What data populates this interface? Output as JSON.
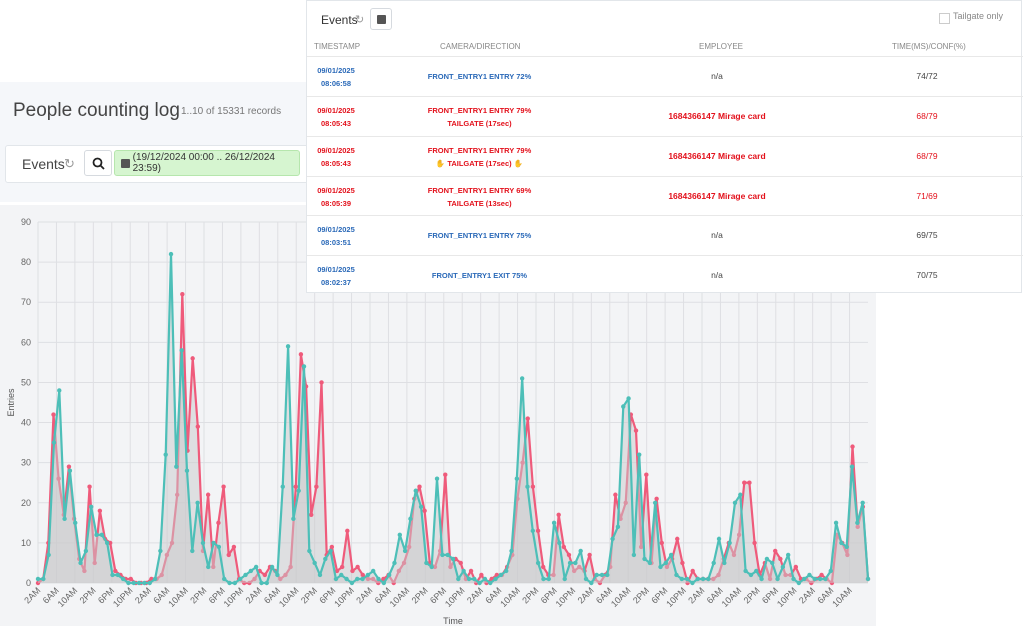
{
  "page": {
    "title": "People counting log",
    "record_count": "1..10 of 15331 records"
  },
  "toolbar": {
    "events_label": "Events",
    "date_range": "(19/12/2024 00:00 .. 26/12/2024 23:59)"
  },
  "events_panel": {
    "title": "Events",
    "tailgate_only_label": "Tailgate only",
    "columns": [
      "TIMESTAMP",
      "CAMERA/DIRECTION",
      "EMPLOYEE",
      "TIME(MS)/CONF(%)"
    ],
    "rows": [
      {
        "date": "09/01/2025",
        "time": "08:06:58",
        "camera": "FRONT_ENTRY1 ENTRY 72%",
        "tailgate": "",
        "employee": "n/a",
        "metric": "74/72",
        "alert": false
      },
      {
        "date": "09/01/2025",
        "time": "08:05:43",
        "camera": "FRONT_ENTRY1 ENTRY 79%",
        "tailgate": "TAILGATE (17sec)",
        "employee": "1684366147 Mirage card",
        "metric": "68/79",
        "alert": true
      },
      {
        "date": "09/01/2025",
        "time": "08:05:43",
        "camera": "FRONT_ENTRY1 ENTRY 79%",
        "tailgate": "TAILGATE (17sec)",
        "employee": "1684366147 Mirage card",
        "metric": "68/79",
        "alert": true,
        "hand_icons": true
      },
      {
        "date": "09/01/2025",
        "time": "08:05:39",
        "camera": "FRONT_ENTRY1 ENTRY 69%",
        "tailgate": "TAILGATE (13sec)",
        "employee": "1684366147 Mirage card",
        "metric": "71/69",
        "alert": true
      },
      {
        "date": "09/01/2025",
        "time": "08:03:51",
        "camera": "FRONT_ENTRY1 ENTRY 75%",
        "tailgate": "",
        "employee": "n/a",
        "metric": "69/75",
        "alert": false
      },
      {
        "date": "09/01/2025",
        "time": "08:02:37",
        "camera": "FRONT_ENTRY1 EXIT 75%",
        "tailgate": "",
        "employee": "n/a",
        "metric": "70/75",
        "alert": false
      }
    ]
  },
  "chart_data": {
    "type": "line",
    "ylabel": "Entries",
    "xlabel": "Time",
    "ylim": [
      0,
      90
    ],
    "yticks": [
      0,
      10,
      20,
      30,
      40,
      50,
      60,
      70,
      80,
      90
    ],
    "xticks": [
      "2AM",
      "6AM",
      "10AM",
      "2PM",
      "6PM",
      "10PM",
      "2AM",
      "6AM",
      "10AM",
      "2PM",
      "6PM",
      "10PM",
      "2AM",
      "6AM",
      "10AM",
      "2PM",
      "6PM",
      "10PM",
      "2AM",
      "6AM",
      "10AM",
      "2PM",
      "6PM",
      "10PM",
      "2AM",
      "6AM",
      "10AM",
      "2PM",
      "6PM",
      "10PM",
      "2AM",
      "6AM",
      "10AM",
      "2PM",
      "6PM",
      "10PM",
      "2AM",
      "6AM",
      "10AM",
      "2PM",
      "6PM",
      "10PM",
      "2AM",
      "6AM",
      "10AM"
    ],
    "grid": true,
    "colors": {
      "series_a": "#ef5b7b",
      "series_b": "#4dbfb8",
      "fill": "#c9c9cc"
    },
    "series": [
      {
        "values": [
          0,
          1,
          10,
          42,
          26,
          17,
          29,
          16,
          6,
          3,
          24,
          5,
          18,
          11,
          10,
          3,
          2,
          1,
          1,
          0,
          0,
          0,
          1,
          1,
          2,
          7,
          10,
          22,
          72,
          33,
          56,
          39,
          8,
          22,
          4,
          15,
          24,
          7,
          9,
          1,
          0,
          0,
          1,
          3,
          2,
          4,
          3,
          1,
          2,
          4,
          24,
          57,
          49,
          17,
          24,
          50,
          7,
          9,
          3,
          4,
          13,
          3,
          4,
          2,
          1,
          1,
          0,
          1,
          2,
          0,
          3,
          5,
          9,
          21,
          24,
          18,
          5,
          4,
          8,
          27,
          4,
          6,
          5,
          1,
          3,
          0,
          2,
          0,
          1,
          2,
          2,
          4,
          7,
          21,
          30,
          41,
          24,
          13,
          4,
          2,
          2,
          17,
          9,
          7,
          3,
          4,
          3,
          7,
          1,
          0,
          2,
          4,
          22,
          16,
          20,
          42,
          38,
          9,
          27,
          5,
          21,
          10,
          4,
          6,
          11,
          5,
          0,
          3,
          1,
          1,
          1,
          1,
          2,
          6,
          10,
          7,
          12,
          25,
          25,
          10,
          2,
          5,
          1,
          8,
          6,
          2,
          2,
          4,
          1,
          1,
          0,
          1,
          2,
          1,
          0,
          12,
          10,
          7,
          34,
          14,
          19,
          1
        ]
      },
      {
        "values": [
          1,
          1,
          7,
          35,
          48,
          16,
          28,
          15,
          5,
          8,
          19,
          12,
          12,
          10,
          2,
          2,
          1,
          0,
          0,
          0,
          0,
          0,
          1,
          8,
          32,
          82,
          29,
          58,
          28,
          8,
          20,
          10,
          4,
          10,
          9,
          1,
          0,
          0,
          1,
          2,
          3,
          4,
          0,
          0,
          4,
          2,
          24,
          59,
          16,
          23,
          54,
          8,
          5,
          2,
          6,
          8,
          1,
          2,
          1,
          0,
          1,
          1,
          2,
          3,
          1,
          0,
          2,
          5,
          12,
          8,
          16,
          23,
          19,
          5,
          4,
          26,
          7,
          7,
          6,
          1,
          3,
          1,
          1,
          0,
          1,
          0,
          1,
          2,
          3,
          8,
          26,
          51,
          24,
          13,
          5,
          1,
          1,
          15,
          10,
          1,
          5,
          5,
          8,
          1,
          0,
          2,
          2,
          2,
          11,
          14,
          44,
          46,
          7,
          32,
          6,
          5,
          20,
          4,
          5,
          7,
          2,
          1,
          1,
          0,
          1,
          1,
          1,
          5,
          11,
          5,
          10,
          20,
          22,
          3,
          2,
          3,
          1,
          6,
          5,
          1,
          4,
          7,
          1,
          0,
          1,
          2,
          1,
          1,
          1,
          3,
          15,
          10,
          9,
          29,
          15,
          20,
          1
        ]
      }
    ]
  }
}
